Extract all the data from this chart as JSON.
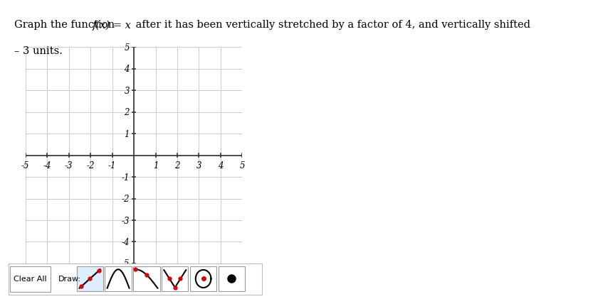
{
  "title_part1": "Graph the function ",
  "title_math": "f(x) = x",
  "title_part2": " after it has been vertically stretched by a factor of 4, and vertically shifted",
  "title_line2": "– 3 units.",
  "xlim": [
    -5,
    5
  ],
  "ylim": [
    -5,
    5
  ],
  "xticks": [
    -5,
    -4,
    -3,
    -2,
    -1,
    1,
    2,
    3,
    4,
    5
  ],
  "yticks": [
    -5,
    -4,
    -3,
    -2,
    -1,
    1,
    2,
    3,
    4,
    5
  ],
  "grid_color": "#cccccc",
  "axis_color": "#333333",
  "tick_label_color": "#000000",
  "background_color": "#ffffff",
  "grid_linewidth": 0.7,
  "axis_linewidth": 1.2,
  "fig_width": 8.13,
  "fig_height": 4.09,
  "red": "#dd0000",
  "black": "#000000",
  "btn_selected_color": "#ddeeff",
  "btn_border_color": "#999999"
}
